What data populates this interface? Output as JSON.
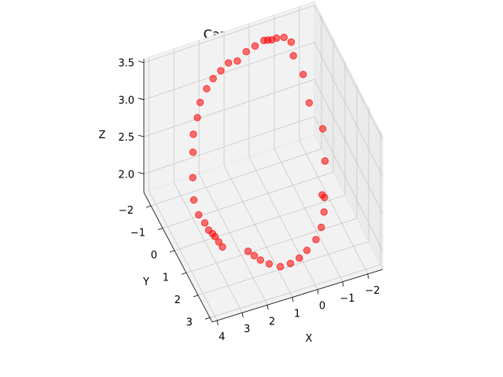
{
  "chart_data": {
    "type": "scatter",
    "title": "Camera Positions",
    "xlabel": "X",
    "ylabel": "Y",
    "zlabel": "Z",
    "xlim": [
      -2.6,
      4.2
    ],
    "ylim": [
      -2.6,
      3.2
    ],
    "zlim": [
      1.75,
      3.55
    ],
    "x_ticks": [
      -2,
      -1,
      0,
      1,
      2,
      3,
      4
    ],
    "y_ticks": [
      -2,
      -1,
      0,
      1,
      2,
      3
    ],
    "z_ticks": [
      2.0,
      2.5,
      3.0,
      3.5
    ],
    "x_tick_labels": [
      "−2",
      "−1",
      "0",
      "1",
      "2",
      "3",
      "4"
    ],
    "y_tick_labels": [
      "−2",
      "−1",
      "0",
      "1",
      "2",
      "3"
    ],
    "z_tick_labels": [
      "2.0",
      "2.5",
      "3.0",
      "3.5"
    ],
    "grid": true,
    "marker_color": "#ff0000",
    "series": [
      {
        "x": [
          2.3,
          2.1,
          1.9,
          1.6,
          1.2,
          0.8,
          0.4,
          0.0,
          -0.5,
          -0.9,
          -1.2,
          -1.4,
          -1.5,
          -1.8,
          -1.9,
          -1.5,
          -1.4,
          -1.2,
          -1.3,
          -1.2,
          -1.0,
          -0.8,
          -0.6,
          -0.4,
          0.0,
          0.4,
          0.8,
          1.2,
          1.6,
          2.0,
          2.4,
          2.8,
          3.1,
          3.4,
          3.6,
          3.8,
          3.9,
          3.8,
          3.6,
          3.4,
          3.2,
          3.1,
          3.0,
          2.9
        ],
        "y": [
          2.2,
          2.3,
          2.4,
          2.5,
          2.6,
          2.6,
          2.5,
          2.3,
          2.0,
          1.6,
          1.2,
          0.8,
          0.4,
          0.0,
          -0.4,
          -0.7,
          -1.0,
          -1.4,
          -1.8,
          -2.2,
          -2.4,
          -2.4,
          -2.3,
          -2.2,
          -2.1,
          -2.0,
          -1.9,
          -1.8,
          -1.6,
          -1.4,
          -1.1,
          -0.8,
          -0.4,
          -0.1,
          0.3,
          0.7,
          1.0,
          1.2,
          1.3,
          1.2,
          1.1,
          1.1,
          1.2,
          1.3
        ],
        "z": [
          2.2,
          2.15,
          2.1,
          2.05,
          2.0,
          2.0,
          2.0,
          2.0,
          2.0,
          2.0,
          2.05,
          2.1,
          2.0,
          2.3,
          2.6,
          2.9,
          3.2,
          3.35,
          3.4,
          3.35,
          3.3,
          3.3,
          3.35,
          3.4,
          3.4,
          3.4,
          3.35,
          3.4,
          3.4,
          3.4,
          3.4,
          3.35,
          3.3,
          3.2,
          3.1,
          2.9,
          2.7,
          2.55,
          2.45,
          2.3,
          2.2,
          2.15,
          2.1,
          2.05
        ]
      }
    ]
  }
}
